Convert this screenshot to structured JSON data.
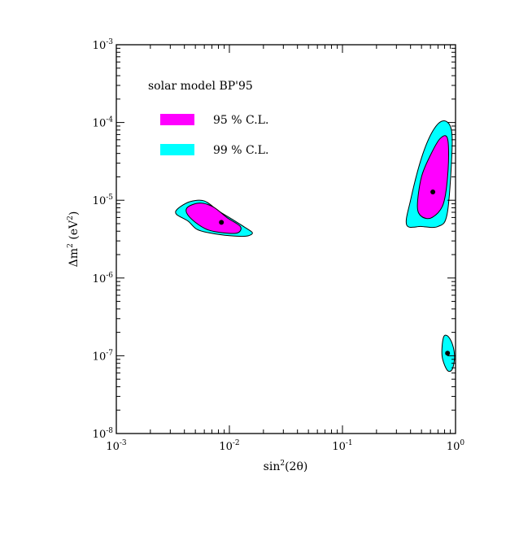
{
  "chart_data": {
    "type": "contour",
    "xscale": "log",
    "yscale": "log",
    "xlim": [
      0.001,
      1
    ],
    "ylim": [
      1e-08,
      0.001
    ],
    "xticks": [
      {
        "value": 0.001,
        "base": "10",
        "exp": "-3"
      },
      {
        "value": 0.01,
        "base": "10",
        "exp": "-2"
      },
      {
        "value": 0.1,
        "base": "10",
        "exp": "-1"
      },
      {
        "value": 1,
        "base": "10",
        "exp": "0"
      }
    ],
    "yticks": [
      {
        "value": 1e-08,
        "base": "10",
        "exp": "-8"
      },
      {
        "value": 1e-07,
        "base": "10",
        "exp": "-7"
      },
      {
        "value": 1e-06,
        "base": "10",
        "exp": "-6"
      },
      {
        "value": 1e-05,
        "base": "10",
        "exp": "-5"
      },
      {
        "value": 0.0001,
        "base": "10",
        "exp": "-4"
      },
      {
        "value": 0.001,
        "base": "10",
        "exp": "-3"
      }
    ],
    "xlabel": {
      "pre": "sin",
      "sup": "2",
      "post": "(2θ)"
    },
    "ylabel": {
      "pre": "Δm",
      "sup": "2",
      "post": " (eV",
      "sup2": "2",
      "post2": ")"
    },
    "legend": {
      "title": "solar model BP'95",
      "position": "top-left",
      "entries": [
        {
          "label": "95 % C.L.",
          "color": "#ff00ff"
        },
        {
          "label": "99 % C.L.",
          "color": "#00ffff"
        }
      ]
    },
    "regions": [
      {
        "name": "99 % C.L.",
        "color": "#00ffff",
        "points": [
          [
            0.0035,
            7.8e-06
          ],
          [
            0.0045,
            9.6e-06
          ],
          [
            0.006,
            9.8e-06
          ],
          [
            0.008,
            7.3e-06
          ],
          [
            0.011,
            5.5e-06
          ],
          [
            0.014,
            4.4e-06
          ],
          [
            0.016,
            3.8e-06
          ],
          [
            0.014,
            3.45e-06
          ],
          [
            0.01,
            3.5e-06
          ],
          [
            0.007,
            3.75e-06
          ],
          [
            0.0052,
            4.2e-06
          ],
          [
            0.0043,
            5.4e-06
          ],
          [
            0.0034,
            6.6e-06
          ]
        ]
      },
      {
        "name": "95 % C.L.",
        "color": "#ff00ff",
        "points": [
          [
            0.0043,
            8.2e-06
          ],
          [
            0.0055,
            9.2e-06
          ],
          [
            0.0072,
            8.2e-06
          ],
          [
            0.0095,
            6e-06
          ],
          [
            0.0125,
            4.6e-06
          ],
          [
            0.0118,
            3.8e-06
          ],
          [
            0.009,
            3.8e-06
          ],
          [
            0.0065,
            4.15e-06
          ],
          [
            0.005,
            5.2e-06
          ],
          [
            0.0042,
            6.8e-06
          ]
        ]
      },
      {
        "name": "99 % C.L.",
        "color": "#00ffff",
        "points": [
          [
            0.37,
            4.8e-06
          ],
          [
            0.4,
            1e-05
          ],
          [
            0.5,
            3.5e-05
          ],
          [
            0.63,
            7.8e-05
          ],
          [
            0.78,
            0.000105
          ],
          [
            0.92,
            8e-05
          ],
          [
            0.92,
            3e-05
          ],
          [
            0.84,
            6.5e-06
          ],
          [
            0.7,
            4.6e-06
          ],
          [
            0.5,
            4.6e-06
          ]
        ]
      },
      {
        "name": "95 % C.L.",
        "color": "#ff00ff",
        "points": [
          [
            0.46,
            8.5e-06
          ],
          [
            0.5,
            2e-05
          ],
          [
            0.6,
            3.8e-05
          ],
          [
            0.73,
            6.2e-05
          ],
          [
            0.85,
            6.2e-05
          ],
          [
            0.86,
            2.5e-05
          ],
          [
            0.78,
            9e-06
          ],
          [
            0.62,
            6e-06
          ],
          [
            0.5,
            6.2e-06
          ]
        ]
      },
      {
        "name": "99 % C.L.",
        "color": "#00ffff",
        "points": [
          [
            0.78,
            1.7e-07
          ],
          [
            0.85,
            1.8e-07
          ],
          [
            0.94,
            1.4e-07
          ],
          [
            0.98,
            9.5e-08
          ],
          [
            0.93,
            6.6e-08
          ],
          [
            0.84,
            6.6e-08
          ],
          [
            0.76,
            1e-07
          ]
        ]
      }
    ],
    "best_fit_points": [
      {
        "x": 0.0085,
        "y": 5.2e-06
      },
      {
        "x": 0.63,
        "y": 1.28e-05
      },
      {
        "x": 0.85,
        "y": 1.08e-07
      }
    ]
  }
}
